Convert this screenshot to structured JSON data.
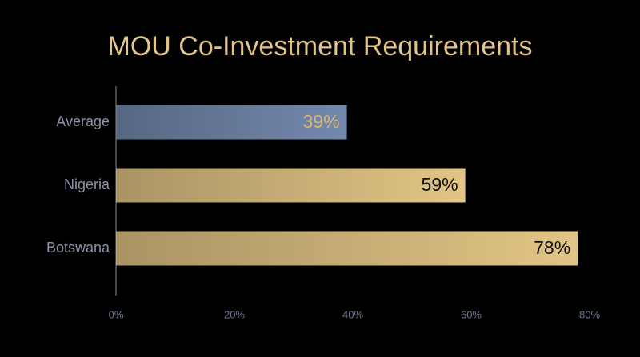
{
  "chart_data": {
    "type": "hbar",
    "title": "MOU Co-Investment Requirements",
    "categories": [
      "Average",
      "Nigeria",
      "Botswana"
    ],
    "values": [
      39,
      59,
      78
    ],
    "value_labels": [
      "39%",
      "59%",
      "78%"
    ],
    "colors": [
      "#7389ad",
      "#e2c585",
      "#e2c585"
    ],
    "label_colors": [
      "#d9b879",
      "#111111",
      "#111111"
    ],
    "xlim": [
      0,
      80
    ],
    "xticks": [
      {
        "value": 0,
        "label": "0%"
      },
      {
        "value": 20,
        "label": "20%"
      },
      {
        "value": 40,
        "label": "40%"
      },
      {
        "value": 60,
        "label": "60%"
      },
      {
        "value": 80,
        "label": "80%"
      }
    ]
  }
}
